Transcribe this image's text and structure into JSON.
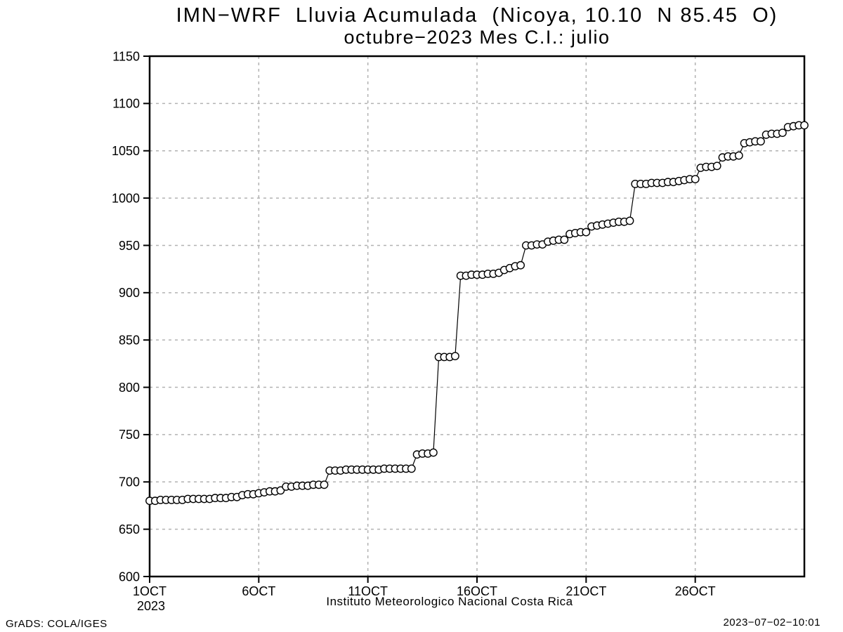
{
  "header": {
    "title_line1": "IMN−WRF  Lluvia Acumulada  (Nicoya, 10.10  N 85.45  O)",
    "title_line2": "octubre−2023 Mes C.I.: julio"
  },
  "footer": {
    "left": "GrADS: COLA/IGES",
    "right": "2023−07−02−10:01"
  },
  "chart_data": {
    "type": "line",
    "title": "IMN−WRF  Lluvia Acumulada  (Nicoya, 10.10  N 85.45  O)",
    "subtitle": "octubre−2023 Mes C.I.: julio",
    "xlabel": "Instituto Meteorologico Nacional Costa Rica",
    "ylabel": "",
    "series_name": "accumulated-rainfall",
    "marker": "open-circle",
    "line_color": "#000000",
    "marker_fill": "#ffffff",
    "frame_color": "#000000",
    "grid": {
      "show": true,
      "color": "#b2b2b2",
      "dash": "4 5"
    },
    "legend": "none",
    "ylim": [
      600,
      1150
    ],
    "y_tick_step": 50,
    "y_tick_labels": [
      "600",
      "650",
      "700",
      "750",
      "800",
      "850",
      "900",
      "950",
      "1000",
      "1050",
      "1100",
      "1150"
    ],
    "x_range_days": [
      0,
      30
    ],
    "points_per_day": 4,
    "x_ticks": [
      {
        "day": 0,
        "label": "1OCT",
        "sublabel": "2023"
      },
      {
        "day": 5,
        "label": "6OCT"
      },
      {
        "day": 10,
        "label": "11OCT"
      },
      {
        "day": 15,
        "label": "16OCT"
      },
      {
        "day": 20,
        "label": "21OCT"
      },
      {
        "day": 25,
        "label": "26OCT"
      }
    ],
    "values": [
      680,
      680,
      681,
      681,
      681,
      681,
      681,
      682,
      682,
      682,
      682,
      682,
      683,
      683,
      683,
      684,
      684,
      686,
      687,
      687,
      688,
      689,
      690,
      690,
      691,
      695,
      695,
      696,
      696,
      696,
      697,
      697,
      697,
      712,
      712,
      712,
      713,
      713,
      713,
      713,
      713,
      713,
      713,
      714,
      714,
      714,
      714,
      714,
      714,
      729,
      730,
      730,
      731,
      832,
      832,
      832,
      833,
      918,
      918,
      919,
      919,
      919,
      920,
      920,
      921,
      924,
      926,
      928,
      929,
      950,
      950,
      951,
      951,
      954,
      955,
      956,
      956,
      962,
      963,
      964,
      964,
      970,
      971,
      972,
      973,
      974,
      975,
      975,
      976,
      1015,
      1015,
      1015,
      1016,
      1016,
      1016,
      1017,
      1017,
      1018,
      1019,
      1020,
      1020,
      1032,
      1033,
      1033,
      1034,
      1043,
      1044,
      1044,
      1045,
      1058,
      1059,
      1060,
      1060,
      1067,
      1068,
      1068,
      1069,
      1075,
      1076,
      1077,
      1077
    ]
  }
}
